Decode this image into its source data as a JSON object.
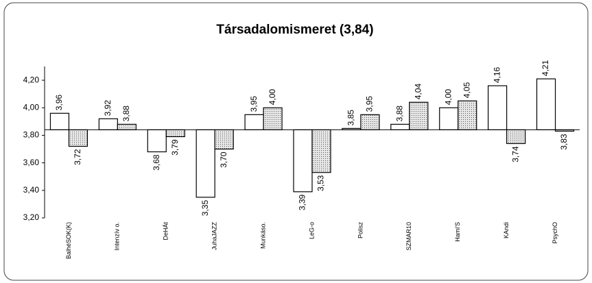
{
  "chart_data": {
    "type": "bar",
    "title": "Társadalomismeret (3,84)",
    "categories": [
      "BalhéSOK(K)",
      "Intenzív o.",
      "DeHÁt",
      "JuhaJAZZ",
      "Munkáso.",
      "LeG-o",
      "Polisz",
      "SZMAR10",
      "Hami'S",
      "KAndi",
      "PsychO"
    ],
    "series": [
      {
        "color": "#ffffff",
        "values": [
          3.96,
          3.92,
          3.68,
          3.35,
          3.95,
          3.39,
          3.85,
          3.88,
          4.0,
          4.16,
          4.21
        ],
        "value_labels": [
          "3,96",
          "3,92",
          "3,68",
          "3,35",
          "3,95",
          "3,39",
          "3,85",
          "3,88",
          "4,00",
          "4,16",
          "4,21"
        ]
      },
      {
        "color": "#c8c8c8",
        "values": [
          3.72,
          3.88,
          3.79,
          3.7,
          4.0,
          3.53,
          3.95,
          4.04,
          4.05,
          3.74,
          3.83
        ],
        "value_labels": [
          "3,72",
          "3,88",
          "3,79",
          "3,70",
          "4,00",
          "3,53",
          "3,95",
          "4,04",
          "4,05",
          "3,74",
          "3,83"
        ]
      }
    ],
    "baseline": 3.84,
    "ylim": [
      3.2,
      4.3
    ],
    "yticks": [
      {
        "value": 3.2,
        "label": "3,20"
      },
      {
        "value": 3.4,
        "label": "3,40"
      },
      {
        "value": 3.6,
        "label": "3,60"
      },
      {
        "value": 3.8,
        "label": "3,80"
      },
      {
        "value": 4.0,
        "label": "4,00"
      },
      {
        "value": 4.2,
        "label": "4,20"
      }
    ]
  }
}
